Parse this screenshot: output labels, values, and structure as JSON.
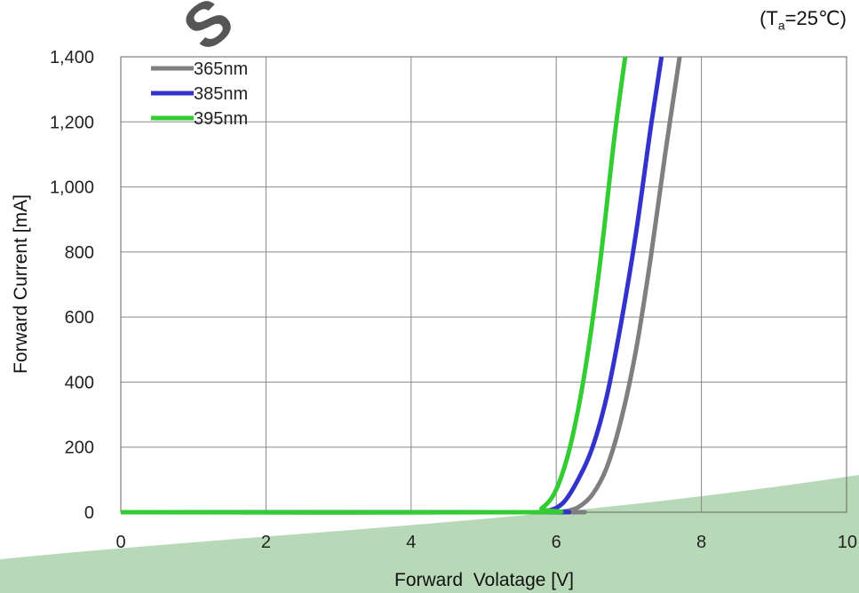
{
  "condition": {
    "prefix": "(T",
    "subscript": "a",
    "suffix": "=25℃)"
  },
  "watermark": {
    "text": "S"
  },
  "chart_data": {
    "type": "line",
    "xlabel": "Forward  Volatage [V]",
    "ylabel": "Forward Current [mA]",
    "xlim": [
      0,
      10
    ],
    "ylim": [
      0,
      1400
    ],
    "xticks": [
      0,
      2,
      4,
      6,
      8,
      10
    ],
    "xtick_labels": [
      "0",
      "2",
      "4",
      "6",
      "8",
      "10"
    ],
    "yticks": [
      0,
      200,
      400,
      600,
      800,
      1000,
      1200,
      1400
    ],
    "ytick_labels": [
      "0",
      "200",
      "400",
      "600",
      "800",
      "1,000",
      "1,200",
      "1,400"
    ],
    "grid": true,
    "legend_position": "top-left",
    "series": [
      {
        "name": "365nm",
        "color": "#7f7f7f",
        "x": [
          0,
          5.9,
          6.1,
          6.3,
          6.5,
          6.7,
          6.9,
          7.1,
          7.3,
          7.5,
          7.7
        ],
        "y": [
          0,
          0,
          2,
          15,
          55,
          140,
          290,
          500,
          780,
          1100,
          1400
        ]
      },
      {
        "name": "385nm",
        "color": "#3333cc",
        "x": [
          0,
          5.7,
          5.9,
          6.1,
          6.3,
          6.5,
          6.7,
          6.9,
          7.1,
          7.3,
          7.45
        ],
        "y": [
          0,
          0,
          5,
          30,
          100,
          200,
          360,
          590,
          860,
          1180,
          1400
        ]
      },
      {
        "name": "395nm",
        "color": "#33cc33",
        "x": [
          0,
          5.6,
          5.8,
          6.0,
          6.2,
          6.4,
          6.6,
          6.8,
          6.95
        ],
        "y": [
          0,
          0,
          12,
          70,
          210,
          440,
          760,
          1150,
          1400
        ]
      }
    ]
  }
}
